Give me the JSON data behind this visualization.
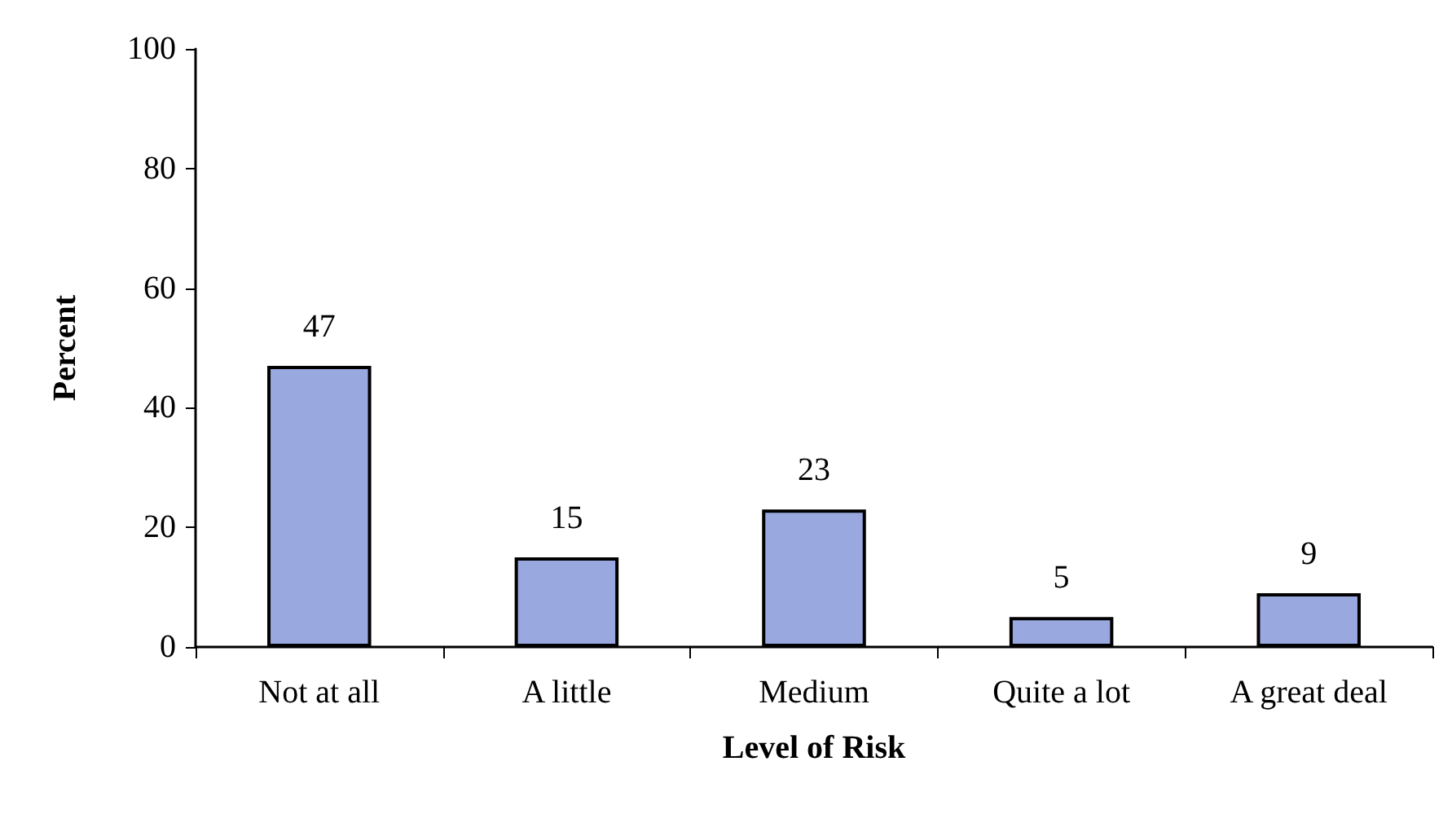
{
  "chart_data": {
    "type": "bar",
    "xlabel": "Level of Risk",
    "ylabel": "Percent",
    "categories": [
      "Not at all",
      "A little",
      "Medium",
      "Quite a lot",
      "A great deal"
    ],
    "values": [
      47,
      15,
      23,
      5,
      9
    ],
    "color": "#9aa8e0",
    "ylim": [
      0,
      100
    ],
    "yticks": [
      0,
      20,
      40,
      60,
      80,
      100
    ],
    "grid": false,
    "data_labels": true
  }
}
